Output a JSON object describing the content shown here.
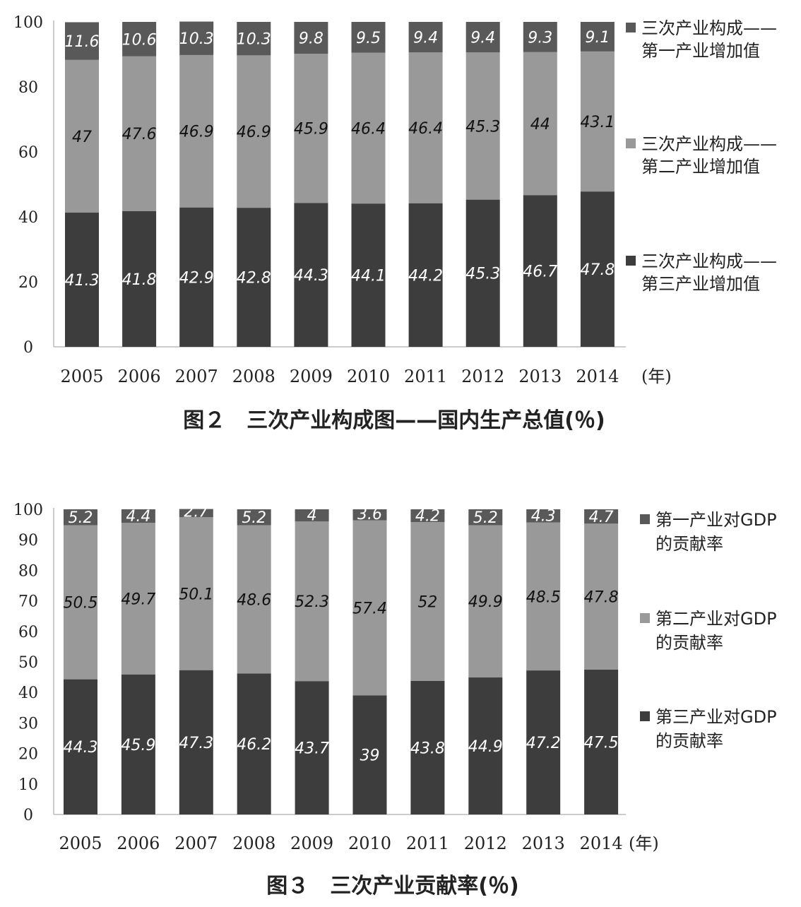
{
  "chart_data": [
    {
      "type": "bar",
      "stacked": true,
      "title": "图２　三次产业构成图——国内生产总值(％)",
      "xunit": "(年)",
      "categories": [
        "2005",
        "2006",
        "2007",
        "2008",
        "2009",
        "2010",
        "2011",
        "2012",
        "2013",
        "2014"
      ],
      "ylim": [
        0,
        100
      ],
      "yticks": [
        0,
        20,
        40,
        60,
        80,
        100
      ],
      "legend_position": "right",
      "grid": false,
      "series": [
        {
          "name": "三次产业构成——第三产业增加值",
          "name_lines": [
            "三次产业构成——",
            "第三产业增加值"
          ],
          "color": "#3d3d3d",
          "label_color": "#ffffff",
          "values": [
            41.3,
            41.8,
            42.9,
            42.8,
            44.3,
            44.1,
            44.2,
            45.3,
            46.7,
            47.8
          ]
        },
        {
          "name": "三次产业构成——第二产业增加值",
          "name_lines": [
            "三次产业构成——",
            "第二产业增加值"
          ],
          "color": "#999999",
          "label_color": "#111111",
          "values": [
            47,
            47.6,
            46.9,
            46.9,
            45.9,
            46.4,
            46.4,
            45.3,
            44,
            43.1
          ]
        },
        {
          "name": "三次产业构成——第一产业增加值",
          "name_lines": [
            "三次产业构成——",
            "第一产业增加值"
          ],
          "color": "#595959",
          "label_color": "#ffffff",
          "values": [
            11.6,
            10.6,
            10.3,
            10.3,
            9.8,
            9.5,
            9.4,
            9.4,
            9.3,
            9.1
          ]
        }
      ],
      "legend_order": [
        2,
        1,
        0
      ]
    },
    {
      "type": "bar",
      "stacked": true,
      "title": "图３　三次产业贡献率(％)",
      "xunit": "(年)",
      "categories": [
        "2005",
        "2006",
        "2007",
        "2008",
        "2009",
        "2010",
        "2011",
        "2012",
        "2013",
        "2014"
      ],
      "ylim": [
        0,
        100
      ],
      "yticks": [
        0,
        10,
        20,
        30,
        40,
        50,
        60,
        70,
        80,
        90,
        100
      ],
      "legend_position": "right",
      "grid": false,
      "series": [
        {
          "name": "第三产业对GDP的贡献率",
          "name_lines": [
            "第三产业对GDP",
            "的贡献率"
          ],
          "color": "#3d3d3d",
          "label_color": "#ffffff",
          "values": [
            44.3,
            45.9,
            47.3,
            46.2,
            43.7,
            39,
            43.8,
            44.9,
            47.2,
            47.5
          ]
        },
        {
          "name": "第二产业对GDP的贡献率",
          "name_lines": [
            "第二产业对GDP",
            "的贡献率"
          ],
          "color": "#999999",
          "label_color": "#111111",
          "values": [
            50.5,
            49.7,
            50.1,
            48.6,
            52.3,
            57.4,
            52,
            49.9,
            48.5,
            47.8
          ]
        },
        {
          "name": "第一产业对GDP的贡献率",
          "name_lines": [
            "第一产业对GDP",
            "的贡献率"
          ],
          "color": "#595959",
          "label_color": "#ffffff",
          "values": [
            5.2,
            4.4,
            2.7,
            5.2,
            4,
            3.6,
            4.2,
            5.2,
            4.3,
            4.7
          ]
        }
      ],
      "legend_order": [
        2,
        1,
        0
      ]
    }
  ]
}
